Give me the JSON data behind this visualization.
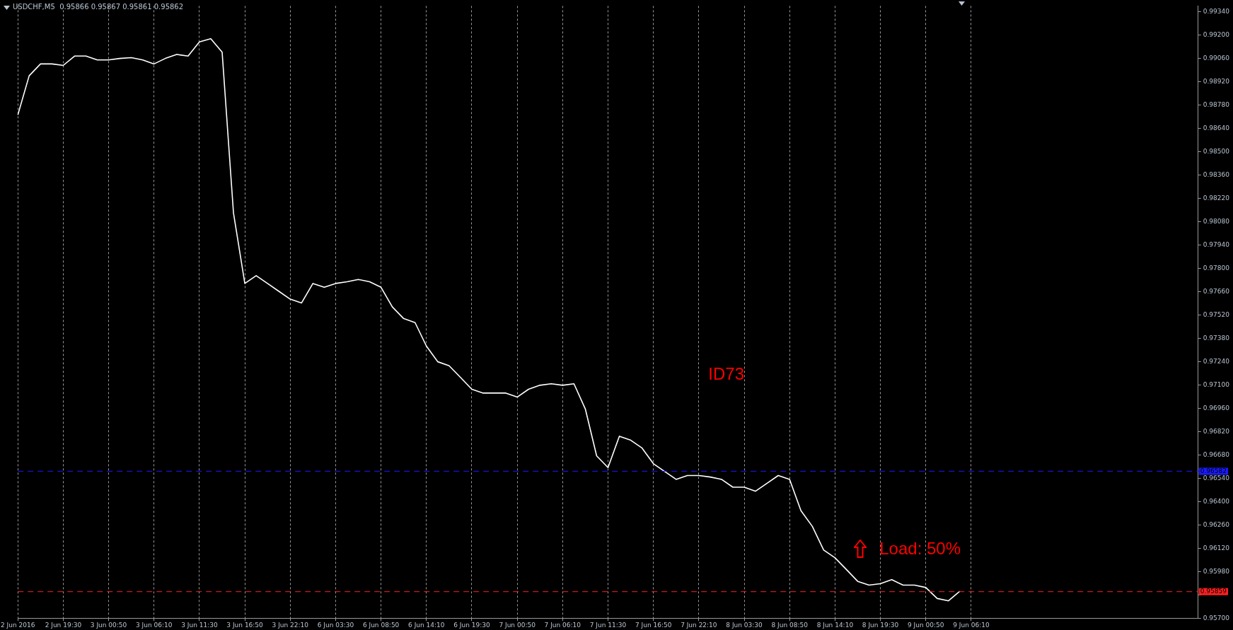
{
  "chart_data": {
    "type": "line",
    "title": "USDCHF,M5  0.95866 0.95867 0.95861 0.95862",
    "categories": [
      "2 Jun 2016",
      null,
      null,
      null,
      "2 Jun 19:30",
      null,
      null,
      null,
      "3 Jun 00:50",
      null,
      null,
      null,
      "3 Jun 06:10",
      null,
      null,
      null,
      "3 Jun 11:30",
      null,
      null,
      null,
      "3 Jun 16:50",
      null,
      null,
      null,
      "3 Jun 22:10",
      null,
      null,
      null,
      "6 Jun 03:30",
      null,
      null,
      null,
      "6 Jun 08:50",
      null,
      null,
      null,
      "6 Jun 14:10",
      null,
      null,
      null,
      "6 Jun 19:30",
      null,
      null,
      null,
      "7 Jun 00:50",
      null,
      null,
      null,
      "7 Jun 06:10",
      null,
      null,
      null,
      "7 Jun 11:30",
      null,
      null,
      null,
      "7 Jun 16:50",
      null,
      null,
      null,
      "7 Jun 22:10",
      null,
      null,
      null,
      "8 Jun 03:30",
      null,
      null,
      null,
      "8 Jun 08:50",
      null,
      null,
      null,
      "8 Jun 14:10",
      null,
      null,
      null,
      "8 Jun 19:30",
      null,
      null,
      null,
      "9 Jun 00:50",
      null,
      null,
      null,
      "9 Jun 06:10",
      null,
      null,
      null,
      null,
      null,
      null,
      null,
      null,
      null,
      null,
      null,
      null,
      null,
      null,
      null,
      null,
      null,
      null,
      null,
      null
    ],
    "series": [
      {
        "color": "#ffffff",
        "values": [
          0.98721,
          0.98956,
          0.99027,
          0.99027,
          0.99018,
          0.99074,
          0.99074,
          0.99051,
          0.99051,
          0.9906,
          0.99065,
          0.99051,
          0.99027,
          0.9906,
          0.99084,
          0.99074,
          0.99159,
          0.99178,
          0.99098,
          0.98133,
          0.97709,
          0.97756,
          0.97709,
          0.97662,
          0.97615,
          0.97592,
          0.97709,
          0.97686,
          0.97709,
          0.97719,
          0.97733,
          0.97719,
          0.97686,
          0.97568,
          0.97498,
          0.97474,
          0.97333,
          0.97239,
          0.97215,
          0.97145,
          0.97074,
          0.97051,
          0.97051,
          0.97051,
          0.97027,
          0.97074,
          0.97098,
          0.97107,
          0.97098,
          0.97107,
          0.96956,
          0.96674,
          0.96604,
          0.96792,
          0.96768,
          0.96721,
          0.96627,
          0.9658,
          0.96533,
          0.96556,
          0.96556,
          0.96547,
          0.96533,
          0.96486,
          0.96486,
          0.96462,
          0.96509,
          0.96556,
          0.96533,
          0.96345,
          0.96251,
          0.96109,
          0.96062,
          0.95992,
          0.95921,
          0.95898,
          0.95907,
          0.95931,
          0.95898,
          0.95898,
          0.95884,
          0.95818,
          0.95804,
          0.95862,
          null,
          null,
          null,
          null,
          null,
          null,
          null,
          null,
          null,
          null,
          null,
          null,
          null,
          null,
          null,
          null,
          null,
          null,
          null,
          null,
          null
        ]
      }
    ],
    "ylim": [
      0.957,
      0.99375
    ],
    "yticks": [
      {
        "value": 0.957,
        "label": "0.95700"
      },
      {
        "value": 0.9584,
        "label": null
      },
      {
        "value": 0.9598,
        "label": "0.95980"
      },
      {
        "value": 0.9612,
        "label": "0.96120"
      },
      {
        "value": 0.9626,
        "label": "0.96260"
      },
      {
        "value": 0.964,
        "label": "0.96400"
      },
      {
        "value": 0.9654,
        "label": "0.96540"
      },
      {
        "value": 0.9668,
        "label": "0.96680"
      },
      {
        "value": 0.9682,
        "label": "0.96820"
      },
      {
        "value": 0.9696,
        "label": "0.96960"
      },
      {
        "value": 0.971,
        "label": "0.97100"
      },
      {
        "value": 0.9724,
        "label": "0.97240"
      },
      {
        "value": 0.9738,
        "label": "0.97380"
      },
      {
        "value": 0.9752,
        "label": "0.97520"
      },
      {
        "value": 0.9766,
        "label": "0.97660"
      },
      {
        "value": 0.978,
        "label": "0.97800"
      },
      {
        "value": 0.9794,
        "label": "0.97940"
      },
      {
        "value": 0.9808,
        "label": "0.98080"
      },
      {
        "value": 0.9822,
        "label": "0.98220"
      },
      {
        "value": 0.9836,
        "label": "0.98360"
      },
      {
        "value": 0.985,
        "label": "0.98500"
      },
      {
        "value": 0.9864,
        "label": "0.98640"
      },
      {
        "value": 0.9878,
        "label": "0.98780"
      },
      {
        "value": 0.9892,
        "label": "0.98920"
      },
      {
        "value": 0.9906,
        "label": "0.99060"
      },
      {
        "value": 0.992,
        "label": "0.99200"
      },
      {
        "value": 0.9934,
        "label": "0.99340"
      }
    ],
    "ref_lines": [
      {
        "axis": "y",
        "value": 0.96582,
        "label": "0.96582",
        "color": "#1a1aff",
        "line_style": "dashed"
      },
      {
        "axis": "y",
        "value": 0.95859,
        "label": "0.95859",
        "color": "#ff2020",
        "line_style": "dashed"
      }
    ],
    "annotations": [
      "ID73",
      "Load: 50%"
    ],
    "grid": "x",
    "legend": false,
    "marker": "none",
    "line_style": "solid"
  }
}
